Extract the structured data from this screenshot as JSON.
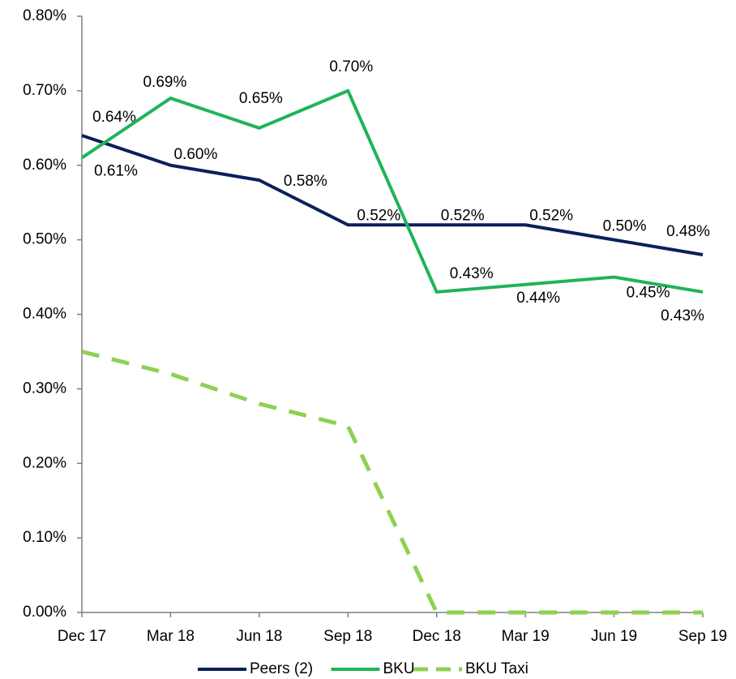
{
  "chart_data": {
    "type": "line",
    "categories": [
      "Dec 17",
      "Mar 18",
      "Jun 18",
      "Sep 18",
      "Dec 18",
      "Mar 19",
      "Jun 19",
      "Sep 19"
    ],
    "series": [
      {
        "name": "Peers (2)",
        "color": "#0b1f5c",
        "dashed": false,
        "values": [
          0.64,
          0.6,
          0.58,
          0.52,
          0.52,
          0.52,
          0.5,
          0.48
        ],
        "value_labels": [
          "0.64%",
          "0.60%",
          "0.58%",
          "0.52%",
          "0.52%",
          "0.52%",
          "0.50%",
          "0.48%"
        ]
      },
      {
        "name": "BKU",
        "color": "#1fb45a",
        "dashed": false,
        "values": [
          0.61,
          0.69,
          0.65,
          0.7,
          0.43,
          0.44,
          0.45,
          0.43
        ],
        "value_labels": [
          "0.61%",
          "0.69%",
          "0.65%",
          "0.70%",
          "0.43%",
          "0.44%",
          "0.45%",
          "0.43%"
        ]
      },
      {
        "name": "BKU Taxi",
        "color": "#8ed152",
        "dashed": true,
        "values": [
          0.35,
          0.32,
          0.28,
          0.25,
          0,
          0,
          0,
          0
        ]
      }
    ],
    "ylim": [
      0,
      0.8
    ],
    "yticks": [
      {
        "value": 0,
        "label": "0.00%"
      },
      {
        "value": 0.1,
        "label": "0.10%"
      },
      {
        "value": 0.2,
        "label": "0.20%"
      },
      {
        "value": 0.3,
        "label": "0.30%"
      },
      {
        "value": 0.4,
        "label": "0.40%"
      },
      {
        "value": 0.5,
        "label": "0.50%"
      },
      {
        "value": 0.6,
        "label": "0.60%"
      },
      {
        "value": 0.7,
        "label": "0.70%"
      },
      {
        "value": 0.8,
        "label": "0.80%"
      }
    ],
    "grid": false,
    "legend": "bottom"
  }
}
